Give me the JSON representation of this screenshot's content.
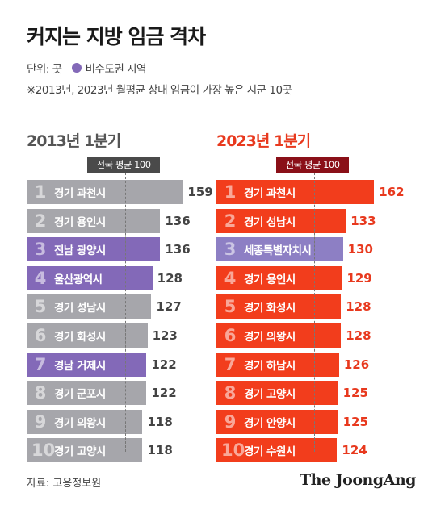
{
  "title": "커지는 지방 임금 격차",
  "legend": {
    "unit": "단위: 곳",
    "highlight": "비수도권 지역"
  },
  "note": "※2013년, 2023년 월평균 상대 임금이 가장 높은 시군 10곳",
  "source": "자료: 고용정보원",
  "brand": "The JoongAng",
  "colors": {
    "gray": "#a6a6ab",
    "purple": "#8369b8",
    "red": "#f23d1c",
    "right_purple": "#8d7fc4"
  },
  "chart_data": [
    {
      "type": "bar",
      "title": "2013년 1분기",
      "reference": {
        "label": "전국 평균 100",
        "value": 100
      },
      "categories": [
        "경기 과천시",
        "경기 용인시",
        "전남 광양시",
        "울산광역시",
        "경기 성남시",
        "경기 화성시",
        "경남 거제시",
        "경기 군포시",
        "경기 의왕시",
        "경기 고양시"
      ],
      "ranks": [
        "1",
        "2",
        "3",
        "4",
        "5",
        "6",
        "7",
        "8",
        "9",
        "10"
      ],
      "values": [
        159,
        136,
        136,
        128,
        127,
        123,
        122,
        122,
        118,
        118
      ],
      "highlight": [
        false,
        false,
        true,
        true,
        false,
        false,
        true,
        false,
        false,
        false
      ]
    },
    {
      "type": "bar",
      "title": "2023년 1분기",
      "reference": {
        "label": "전국 평균 100",
        "value": 100
      },
      "categories": [
        "경기 과천시",
        "경기 성남시",
        "세종특별자치시",
        "경기 용인시",
        "경기 화성시",
        "경기 의왕시",
        "경기 하남시",
        "경기 고양시",
        "경기 안양시",
        "경기 수원시"
      ],
      "ranks": [
        "1",
        "2",
        "3",
        "4",
        "5",
        "6",
        "7",
        "8",
        "9",
        "10"
      ],
      "values": [
        162,
        133,
        130,
        129,
        128,
        128,
        126,
        125,
        125,
        124
      ],
      "highlight": [
        false,
        false,
        true,
        false,
        false,
        false,
        false,
        false,
        false,
        false
      ]
    }
  ]
}
